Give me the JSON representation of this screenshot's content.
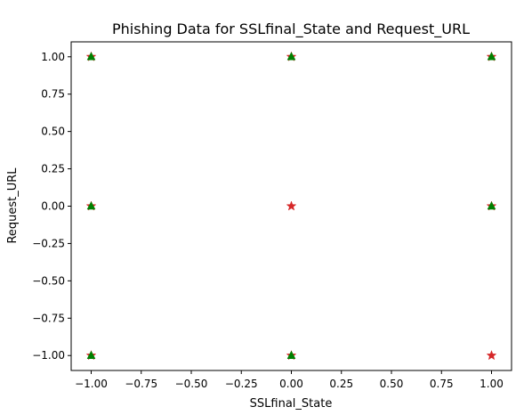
{
  "chart_data": {
    "type": "scatter",
    "title": "Phishing Data for SSLfinal_State and Request_URL",
    "xlabel": "SSLfinal_State",
    "ylabel": "Request_URL",
    "xlim": [
      -1.1,
      1.1
    ],
    "ylim": [
      -1.1,
      1.1
    ],
    "xticks": [
      -1.0,
      -0.75,
      -0.5,
      -0.25,
      0.0,
      0.25,
      0.5,
      0.75,
      1.0
    ],
    "yticks": [
      -1.0,
      -0.75,
      -0.5,
      -0.25,
      0.0,
      0.25,
      0.5,
      0.75,
      1.0
    ],
    "xtick_labels": [
      "−1.00",
      "−0.75",
      "−0.50",
      "−0.25",
      "0.00",
      "0.25",
      "0.50",
      "0.75",
      "1.00"
    ],
    "ytick_labels": [
      "−1.00",
      "−0.75",
      "−0.50",
      "−0.25",
      "0.00",
      "0.25",
      "0.50",
      "0.75",
      "1.00"
    ],
    "grid": false,
    "series": [
      {
        "marker": "star",
        "color": "#d62728",
        "points": [
          {
            "x": -1,
            "y": 1
          },
          {
            "x": 0,
            "y": 1
          },
          {
            "x": 1,
            "y": 1
          },
          {
            "x": -1,
            "y": 0
          },
          {
            "x": 0,
            "y": 0
          },
          {
            "x": 1,
            "y": 0
          },
          {
            "x": -1,
            "y": -1
          },
          {
            "x": 0,
            "y": -1
          },
          {
            "x": 1,
            "y": -1
          }
        ]
      },
      {
        "marker": "triangle-up",
        "color": "#008000",
        "points": [
          {
            "x": -1,
            "y": 1
          },
          {
            "x": 0,
            "y": 1
          },
          {
            "x": 1,
            "y": 1
          },
          {
            "x": -1,
            "y": 0
          },
          {
            "x": 1,
            "y": 0
          },
          {
            "x": -1,
            "y": -1
          },
          {
            "x": 0,
            "y": -1
          }
        ]
      }
    ]
  }
}
